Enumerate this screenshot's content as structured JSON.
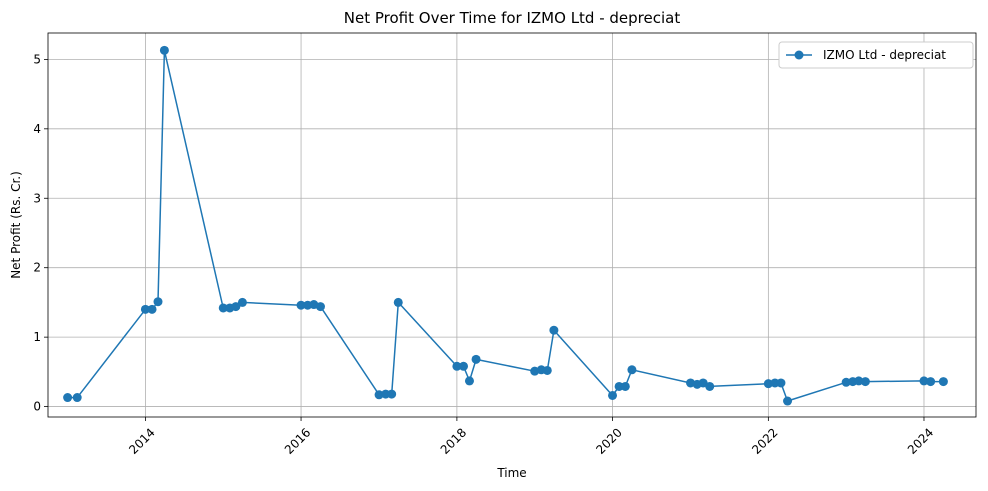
{
  "chart_data": {
    "type": "line",
    "title": "Net Profit Over Time for IZMO Ltd - depreciat",
    "xlabel": "Time",
    "ylabel": "Net Profit (Rs. Cr.)",
    "xlim": [
      "2012-10-01",
      "2024-09-01"
    ],
    "ylim": [
      -0.15,
      5.38
    ],
    "x_ticks": [
      "2014",
      "2016",
      "2018",
      "2020",
      "2022",
      "2024"
    ],
    "y_ticks": [
      "0",
      "1",
      "2",
      "3",
      "4",
      "5"
    ],
    "grid": true,
    "legend_position": "top-right",
    "color": "#1f77b4",
    "series": [
      {
        "name": "IZMO Ltd - depreciat",
        "x": [
          "2013-01-01",
          "2013-02-15",
          "2014-01-01",
          "2014-02-01",
          "2014-03-01",
          "2014-03-31",
          "2015-01-01",
          "2015-02-01",
          "2015-03-01",
          "2015-04-01",
          "2016-01-01",
          "2016-02-01",
          "2016-03-01",
          "2016-04-01",
          "2017-01-01",
          "2017-02-01",
          "2017-03-01",
          "2017-04-01",
          "2018-01-01",
          "2018-02-01",
          "2018-03-01",
          "2018-04-01",
          "2019-01-01",
          "2019-02-01",
          "2019-03-01",
          "2019-04-01",
          "2020-01-01",
          "2020-02-01",
          "2020-03-01",
          "2020-04-01",
          "2021-01-01",
          "2021-02-01",
          "2021-03-01",
          "2021-04-01",
          "2022-01-01",
          "2022-02-01",
          "2022-03-01",
          "2022-04-01",
          "2023-01-01",
          "2023-02-01",
          "2023-03-01",
          "2023-04-01",
          "2024-01-01",
          "2024-02-01",
          "2024-04-01"
        ],
        "values": [
          0.13,
          0.13,
          1.4,
          1.4,
          1.51,
          5.13,
          1.42,
          1.42,
          1.44,
          1.5,
          1.46,
          1.46,
          1.47,
          1.44,
          0.17,
          0.18,
          0.18,
          1.5,
          0.58,
          0.58,
          0.37,
          0.68,
          0.51,
          0.53,
          0.52,
          1.1,
          0.16,
          0.29,
          0.29,
          0.53,
          0.34,
          0.32,
          0.34,
          0.29,
          0.33,
          0.34,
          0.34,
          0.08,
          0.35,
          0.36,
          0.37,
          0.36,
          0.37,
          0.36,
          0.36
        ]
      }
    ]
  }
}
